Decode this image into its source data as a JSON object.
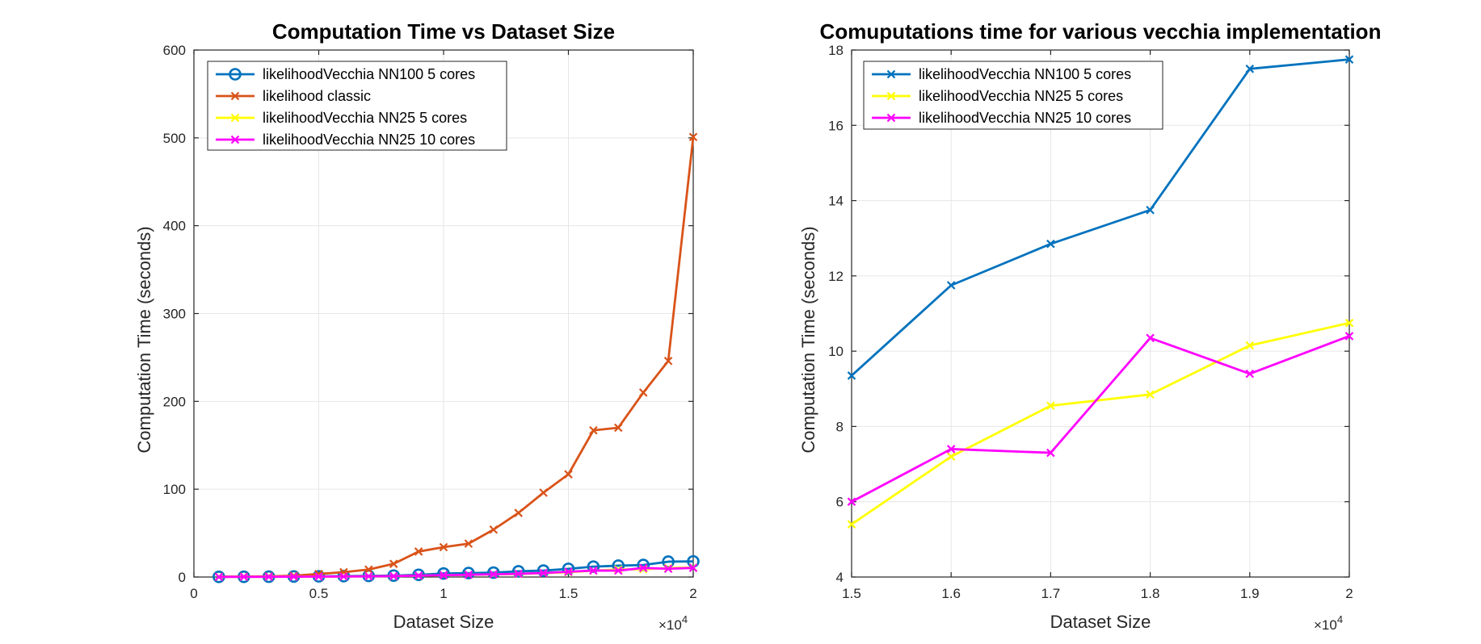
{
  "chart_data": [
    {
      "type": "line",
      "title": "Computation Time vs Dataset Size",
      "xlabel": "Dataset Size",
      "ylabel": "Computation Time (seconds)",
      "x_exponent_label": "×10",
      "x_exponent_power": "4",
      "xlim": [
        0,
        20000
      ],
      "ylim": [
        0,
        600
      ],
      "x_ticks": [
        0,
        5000,
        10000,
        15000,
        20000
      ],
      "x_tick_labels": [
        "0",
        "0.5",
        "1",
        "1.5",
        "2"
      ],
      "y_ticks": [
        0,
        100,
        200,
        300,
        400,
        500,
        600
      ],
      "y_tick_labels": [
        "0",
        "100",
        "200",
        "300",
        "400",
        "500",
        "600"
      ],
      "grid": true,
      "legend_position": "top-left",
      "x": [
        1000,
        2000,
        3000,
        4000,
        5000,
        6000,
        7000,
        8000,
        9000,
        10000,
        11000,
        12000,
        13000,
        14000,
        15000,
        16000,
        17000,
        18000,
        19000,
        20000
      ],
      "series": [
        {
          "name": "likelihoodVecchia NN100 5 cores",
          "color": "#0072BD",
          "marker": "circle",
          "values": [
            0.2,
            0.3,
            0.4,
            0.6,
            0.8,
            1.0,
            1.3,
            1.6,
            2.5,
            4.0,
            4.5,
            5.0,
            6.5,
            7.3,
            9.3,
            11.8,
            12.9,
            13.7,
            17.5,
            17.8
          ]
        },
        {
          "name": "likelihood classic",
          "color": "#D95319",
          "marker": "x",
          "values": [
            0.3,
            0.5,
            0.8,
            1.5,
            3.5,
            5.5,
            8.5,
            15.0,
            29.0,
            34.0,
            38.0,
            54.0,
            73.0,
            96.0,
            117.0,
            167.0,
            170.0,
            210.0,
            246.0,
            501.0
          ]
        },
        {
          "name": "likelihoodVecchia NN25 5 cores",
          "color": "#FFFF00",
          "marker": "x",
          "values": [
            0.1,
            0.2,
            0.3,
            0.4,
            0.5,
            0.6,
            0.8,
            1.0,
            1.5,
            2.0,
            2.5,
            3.0,
            3.5,
            4.5,
            5.4,
            7.2,
            8.6,
            8.9,
            10.2,
            10.8
          ]
        },
        {
          "name": "likelihoodVecchia NN25 10 cores",
          "color": "#FF00FF",
          "marker": "x",
          "values": [
            0.1,
            0.2,
            0.3,
            0.4,
            0.5,
            0.6,
            0.8,
            1.0,
            1.6,
            2.1,
            2.6,
            3.1,
            3.7,
            4.6,
            6.0,
            7.4,
            7.3,
            10.3,
            9.4,
            10.4
          ]
        }
      ]
    },
    {
      "type": "line",
      "title": "Comuputations time for various vecchia implementation",
      "xlabel": "Dataset Size",
      "ylabel": "Computation Time (seconds)",
      "x_exponent_label": "×10",
      "x_exponent_power": "4",
      "xlim": [
        15000,
        20000
      ],
      "ylim": [
        4,
        18
      ],
      "x_ticks": [
        15000,
        16000,
        17000,
        18000,
        19000,
        20000
      ],
      "x_tick_labels": [
        "1.5",
        "1.6",
        "1.7",
        "1.8",
        "1.9",
        "2"
      ],
      "y_ticks": [
        4,
        6,
        8,
        10,
        12,
        14,
        16,
        18
      ],
      "y_tick_labels": [
        "4",
        "6",
        "8",
        "10",
        "12",
        "14",
        "16",
        "18"
      ],
      "grid": true,
      "legend_position": "top-left",
      "x": [
        15000,
        16000,
        17000,
        18000,
        19000,
        20000
      ],
      "series": [
        {
          "name": "likelihoodVecchia NN100 5 cores",
          "color": "#0072BD",
          "marker": "x",
          "values": [
            9.35,
            11.75,
            12.85,
            13.75,
            17.5,
            17.75
          ]
        },
        {
          "name": "likelihoodVecchia NN25 5 cores",
          "color": "#FFFF00",
          "marker": "x",
          "values": [
            5.4,
            7.2,
            8.55,
            8.85,
            10.15,
            10.75
          ]
        },
        {
          "name": "likelihoodVecchia NN25 10 cores",
          "color": "#FF00FF",
          "marker": "x",
          "values": [
            6.0,
            7.4,
            7.3,
            10.35,
            9.4,
            10.4
          ]
        }
      ]
    }
  ]
}
